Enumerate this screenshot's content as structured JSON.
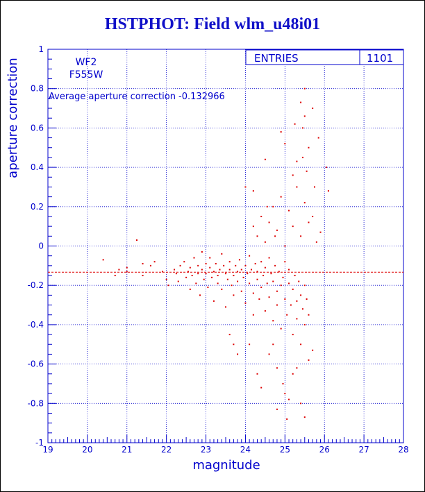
{
  "title": "HSTPHOT: Field wlm_u48i01",
  "panel": {
    "line1": "WF2",
    "line2": "F555W",
    "avg_text": "Average aperture correction -0.132966",
    "stats_label": "ENTRIES",
    "stats_value": "1101"
  },
  "colors": {
    "axes": "#0000cc",
    "points": "#dd0000",
    "title": "#1010c8"
  },
  "chart_data": {
    "type": "scatter",
    "title": "HSTPHOT: Field wlm_u48i01",
    "xlabel": "magnitude",
    "ylabel": "aperture correction",
    "xlim": [
      19,
      28
    ],
    "ylim": [
      -1,
      1
    ],
    "xticks": [
      19,
      20,
      21,
      22,
      23,
      24,
      25,
      26,
      27,
      28
    ],
    "yticks": [
      -1,
      -0.8,
      -0.6,
      -0.4,
      -0.2,
      0,
      0.2,
      0.4,
      0.6,
      0.8,
      1
    ],
    "grid": true,
    "entries": 1101,
    "average_line": -0.132966,
    "series": [
      {
        "points": [
          [
            20.4,
            -0.07
          ],
          [
            20.7,
            -0.15
          ],
          [
            20.8,
            -0.12
          ],
          [
            21.0,
            -0.13
          ],
          [
            21.0,
            -0.11
          ],
          [
            21.25,
            0.03
          ],
          [
            21.4,
            -0.09
          ],
          [
            21.4,
            -0.15
          ],
          [
            21.6,
            -0.1
          ],
          [
            21.7,
            -0.08
          ],
          [
            21.9,
            -0.13
          ],
          [
            22.0,
            -0.17
          ],
          [
            22.05,
            -0.2
          ],
          [
            22.2,
            -0.12
          ],
          [
            22.25,
            -0.14
          ],
          [
            22.3,
            -0.18
          ],
          [
            22.35,
            -0.1
          ],
          [
            22.45,
            -0.08
          ],
          [
            22.5,
            -0.16
          ],
          [
            22.55,
            -0.13
          ],
          [
            22.6,
            -0.22
          ],
          [
            22.6,
            -0.11
          ],
          [
            22.65,
            -0.15
          ],
          [
            22.7,
            -0.06
          ],
          [
            22.75,
            -0.19
          ],
          [
            22.8,
            -0.1
          ],
          [
            22.8,
            -0.14
          ],
          [
            22.85,
            -0.25
          ],
          [
            22.9,
            -0.12
          ],
          [
            22.9,
            -0.03
          ],
          [
            22.95,
            -0.17
          ],
          [
            23.0,
            -0.09
          ],
          [
            23.0,
            -0.14
          ],
          [
            23.05,
            -0.21
          ],
          [
            23.1,
            -0.11
          ],
          [
            23.1,
            -0.06
          ],
          [
            23.15,
            -0.16
          ],
          [
            23.2,
            -0.13
          ],
          [
            23.2,
            -0.28
          ],
          [
            23.25,
            -0.09
          ],
          [
            23.3,
            -0.15
          ],
          [
            23.3,
            -0.19
          ],
          [
            23.35,
            -0.12
          ],
          [
            23.4,
            -0.04
          ],
          [
            23.4,
            -0.22
          ],
          [
            23.45,
            -0.1
          ],
          [
            23.5,
            -0.14
          ],
          [
            23.5,
            -0.31
          ],
          [
            23.55,
            -0.17
          ],
          [
            23.6,
            -0.08
          ],
          [
            23.6,
            -0.12
          ],
          [
            23.65,
            -0.2
          ],
          [
            23.7,
            -0.15
          ],
          [
            23.7,
            -0.25
          ],
          [
            23.75,
            -0.1
          ],
          [
            23.8,
            -0.13
          ],
          [
            23.8,
            -0.18
          ],
          [
            23.85,
            -0.07
          ],
          [
            23.9,
            -0.23
          ],
          [
            23.9,
            -0.12
          ],
          [
            23.95,
            -0.16
          ],
          [
            24.0,
            -0.1
          ],
          [
            24.0,
            -0.29
          ],
          [
            24.05,
            -0.14
          ],
          [
            24.1,
            -0.19
          ],
          [
            24.1,
            -0.05
          ],
          [
            24.15,
            -0.12
          ],
          [
            24.2,
            -0.24
          ],
          [
            24.2,
            -0.35
          ],
          [
            24.25,
            -0.09
          ],
          [
            24.3,
            -0.17
          ],
          [
            24.3,
            -0.13
          ],
          [
            24.35,
            -0.27
          ],
          [
            24.4,
            -0.08
          ],
          [
            24.4,
            -0.21
          ],
          [
            24.45,
            -0.15
          ],
          [
            24.5,
            -0.33
          ],
          [
            24.5,
            -0.11
          ],
          [
            24.55,
            -0.19
          ],
          [
            24.6,
            -0.26
          ],
          [
            24.6,
            -0.06
          ],
          [
            24.65,
            -0.14
          ],
          [
            24.7,
            -0.38
          ],
          [
            24.7,
            -0.18
          ],
          [
            24.75,
            -0.1
          ],
          [
            24.8,
            -0.23
          ],
          [
            24.8,
            -0.3
          ],
          [
            24.85,
            -0.13
          ],
          [
            24.9,
            -0.2
          ],
          [
            24.9,
            -0.42
          ],
          [
            24.95,
            -0.16
          ],
          [
            25.0,
            -0.27
          ],
          [
            25.0,
            -0.08
          ],
          [
            25.05,
            -0.35
          ],
          [
            25.1,
            -0.19
          ],
          [
            25.1,
            -0.12
          ],
          [
            25.15,
            -0.3
          ],
          [
            25.2,
            -0.22
          ],
          [
            25.2,
            -0.45
          ],
          [
            25.25,
            -0.15
          ],
          [
            25.3,
            -0.28
          ],
          [
            25.3,
            -0.37
          ],
          [
            25.35,
            -0.18
          ],
          [
            25.4,
            -0.25
          ],
          [
            25.4,
            -0.5
          ],
          [
            25.45,
            -0.32
          ],
          [
            25.5,
            -0.2
          ],
          [
            25.5,
            -0.4
          ],
          [
            25.55,
            -0.27
          ],
          [
            25.6,
            -0.35
          ],
          [
            24.2,
            0.1
          ],
          [
            24.3,
            0.05
          ],
          [
            24.4,
            0.15
          ],
          [
            24.5,
            0.02
          ],
          [
            24.6,
            0.12
          ],
          [
            24.7,
            0.2
          ],
          [
            24.8,
            0.08
          ],
          [
            24.9,
            0.25
          ],
          [
            25.0,
            0.0
          ],
          [
            25.1,
            0.18
          ],
          [
            25.2,
            0.1
          ],
          [
            25.3,
            0.3
          ],
          [
            25.4,
            0.05
          ],
          [
            25.5,
            0.22
          ],
          [
            25.6,
            0.12
          ],
          [
            25.7,
            0.15
          ],
          [
            25.8,
            0.02
          ],
          [
            25.9,
            0.07
          ],
          [
            24.55,
            0.2
          ],
          [
            24.75,
            0.05
          ],
          [
            25.45,
            0.6
          ],
          [
            25.5,
            0.8
          ],
          [
            25.4,
            0.73
          ],
          [
            25.5,
            0.66
          ],
          [
            25.45,
            0.45
          ],
          [
            25.6,
            0.5
          ],
          [
            25.55,
            0.38
          ],
          [
            25.3,
            0.43
          ],
          [
            25.75,
            0.3
          ],
          [
            25.85,
            0.55
          ],
          [
            26.05,
            0.4
          ],
          [
            26.1,
            0.28
          ],
          [
            25.7,
            0.7
          ],
          [
            25.0,
            0.52
          ],
          [
            24.9,
            0.58
          ],
          [
            24.5,
            0.44
          ],
          [
            25.2,
            0.36
          ],
          [
            25.25,
            0.62
          ],
          [
            24.0,
            0.3
          ],
          [
            24.2,
            0.28
          ],
          [
            24.6,
            -0.55
          ],
          [
            24.7,
            -0.5
          ],
          [
            24.3,
            -0.65
          ],
          [
            24.8,
            -0.62
          ],
          [
            24.95,
            -0.7
          ],
          [
            25.0,
            -0.75
          ],
          [
            25.1,
            -0.78
          ],
          [
            25.05,
            -0.88
          ],
          [
            25.5,
            -0.87
          ],
          [
            24.8,
            -0.83
          ],
          [
            25.3,
            -0.62
          ],
          [
            25.6,
            -0.58
          ],
          [
            25.7,
            -0.53
          ],
          [
            24.1,
            -0.5
          ],
          [
            23.7,
            -0.5
          ],
          [
            23.6,
            -0.45
          ],
          [
            23.8,
            -0.55
          ],
          [
            24.4,
            -0.72
          ],
          [
            25.4,
            -0.8
          ],
          [
            25.2,
            -0.65
          ]
        ]
      }
    ]
  }
}
